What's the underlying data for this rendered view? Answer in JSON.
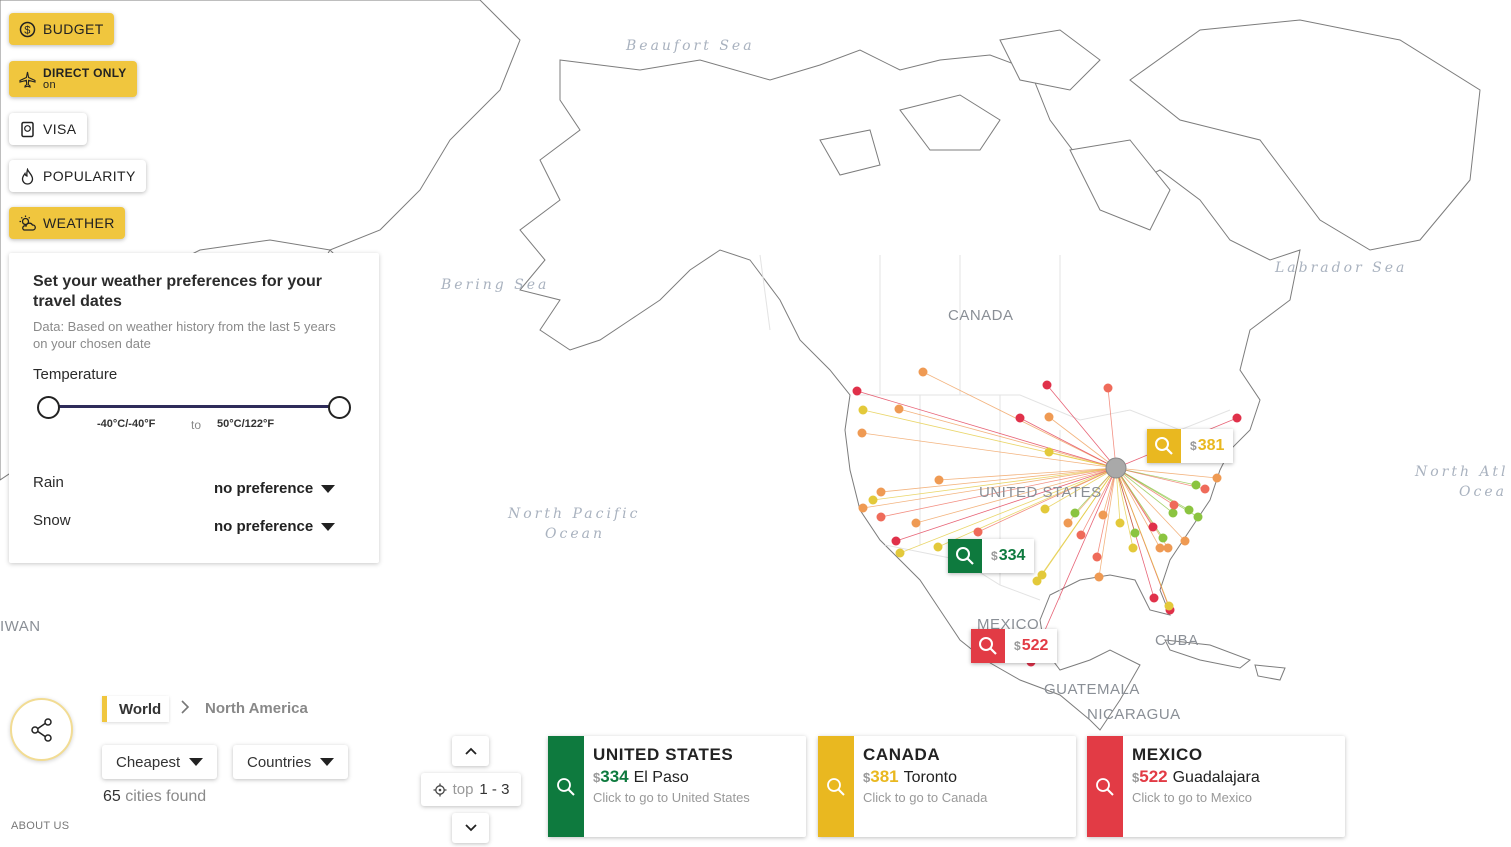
{
  "filters": {
    "budget": "BUDGET",
    "direct_only": "DIRECT ONLY",
    "direct_only_state": "on",
    "visa": "VISA",
    "popularity": "POPULARITY",
    "weather": "WEATHER"
  },
  "weather_panel": {
    "title": "Set your weather preferences for your travel dates",
    "subtitle": "Data: Based on weather history from the last 5 years on your chosen date",
    "temperature_label": "Temperature",
    "range_min": "-40°C/-40°F",
    "range_to": "to",
    "range_max": "50°C/122°F",
    "rain_label": "Rain",
    "rain_value": "no preference",
    "snow_label": "Snow",
    "snow_value": "no preference"
  },
  "map": {
    "sea_labels": {
      "beaufort": "Beaufort Sea",
      "bering": "Bering Sea",
      "labrador": "Labrador Sea",
      "north_pacific_1": "North Pacific",
      "north_pacific_2": "Ocean",
      "north_atlantic_1": "North Atl",
      "north_atlantic_2": "Ocea"
    },
    "country_labels": {
      "canada": "CANADA",
      "united_states": "UNITED STATES",
      "mexico": "MEXICO",
      "cuba": "CUBA",
      "guatemala": "GUATEMALA",
      "nicaragua": "NICARAGUA",
      "taiwan": "IWAN"
    },
    "markers": {
      "canada": {
        "currency": "$",
        "price": "381",
        "color": "#e9b820"
      },
      "united_states": {
        "currency": "$",
        "price": "334",
        "color": "#0e7a3e"
      },
      "mexico": {
        "currency": "$",
        "price": "522",
        "color": "#e23b45"
      }
    }
  },
  "breadcrumb": {
    "world": "World",
    "region": "North America"
  },
  "sort": {
    "value": "Cheapest"
  },
  "group": {
    "value": "Countries"
  },
  "results": {
    "count": "65",
    "suffix": "cities found"
  },
  "pager": {
    "label": "top",
    "range": "1 - 3"
  },
  "about": "ABOUT US",
  "cards": [
    {
      "country": "UNITED STATES",
      "currency": "$",
      "price": "334",
      "city": "El Paso",
      "hint": "Click to go to United States",
      "color": "#0e7a3e"
    },
    {
      "country": "CANADA",
      "currency": "$",
      "price": "381",
      "city": "Toronto",
      "hint": "Click to go to Canada",
      "color": "#e9b820"
    },
    {
      "country": "MEXICO",
      "currency": "$",
      "price": "522",
      "city": "Guadalajara",
      "hint": "Click to go to Mexico",
      "color": "#e23b45"
    }
  ]
}
